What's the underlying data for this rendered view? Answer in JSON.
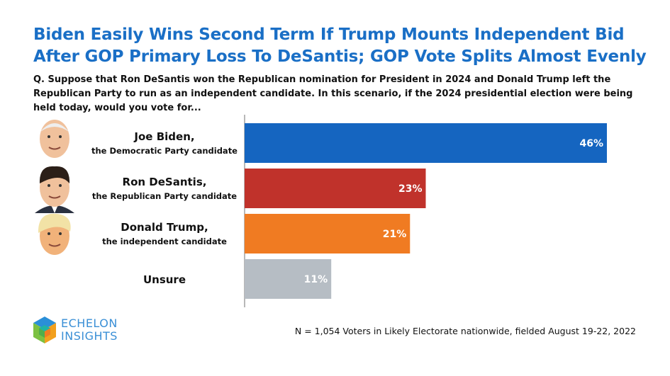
{
  "title": "Biden Easily Wins Second Term If Trump Mounts Independent Bid After GOP Primary Loss To DeSantis; GOP Vote Splits Almost Evenly",
  "question": "Q. Suppose that Ron DeSantis won the Republican nomination for President in 2024 and Donald Trump left the Republican Party to run as an independent candidate. In this scenario, if the 2024 presidential election were being held today, would you vote for...",
  "footnote": "N = 1,054 Voters in Likely Electorate nationwide, fielded August 19-22, 2022",
  "logo": {
    "line1": "ECHELON",
    "line2": "INSIGHTS"
  },
  "chart_data": {
    "type": "bar",
    "orientation": "horizontal",
    "title": "Biden Easily Wins Second Term If Trump Mounts Independent Bid After GOP Primary Loss To DeSantis; GOP Vote Splits Almost Evenly",
    "categories": [
      {
        "name": "Joe Biden,",
        "sub": "the Democratic Party candidate",
        "face": "biden"
      },
      {
        "name": "Ron DeSantis,",
        "sub": "the Republican Party candidate",
        "face": "desantis"
      },
      {
        "name": "Donald Trump,",
        "sub": "the independent candidate",
        "face": "trump"
      },
      {
        "name": "Unsure",
        "sub": "",
        "face": ""
      }
    ],
    "values": [
      46,
      23,
      21,
      11
    ],
    "labels": [
      "46%",
      "23%",
      "21%",
      "11%"
    ],
    "colors": [
      "#1565c0",
      "#c0322b",
      "#f07b22",
      "#b6bdc4"
    ],
    "unit": "%",
    "xlim": [
      0,
      50
    ],
    "grid": false,
    "legend": "none"
  }
}
